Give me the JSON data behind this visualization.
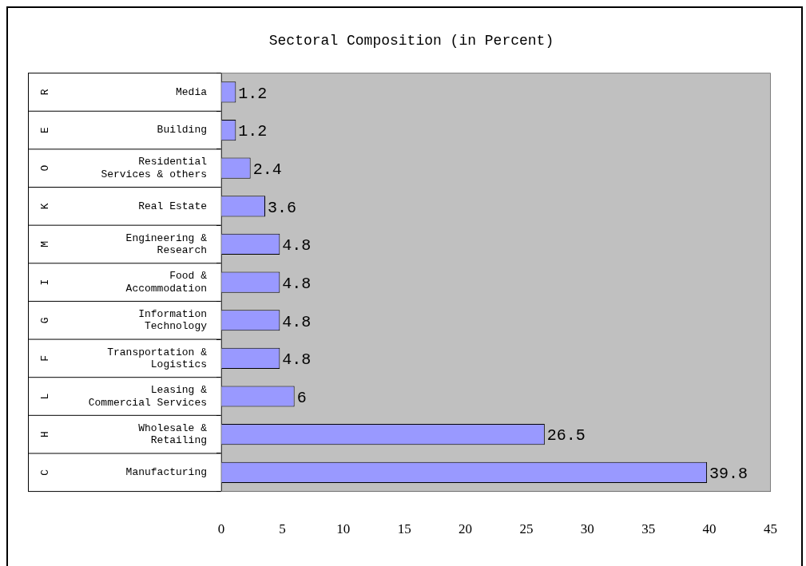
{
  "chart_data": {
    "type": "bar",
    "orientation": "horizontal",
    "title": "Sectoral Composition (in Percent)",
    "categories": [
      "Media",
      "Building",
      "Residential Services & others",
      "Real Estate",
      "Engineering & Research",
      "Food & Accommodation",
      "Information Technology",
      "Transportation & Logistics",
      "Leasing & Commercial Services",
      "Wholesale & Retailing",
      "Manufacturing"
    ],
    "values": [
      1.2,
      1.2,
      2.4,
      3.6,
      4.8,
      4.8,
      4.8,
      4.8,
      6,
      26.5,
      39.8
    ],
    "color": "#9999ff",
    "xlim": [
      0,
      45
    ],
    "xticks": [
      0,
      5,
      10,
      15,
      20,
      25,
      30,
      35,
      40,
      45
    ],
    "data_labels": true,
    "annotations": [
      "R",
      "E",
      "O",
      "K",
      "M",
      "I",
      "G",
      "F",
      "L",
      "H",
      "C"
    ]
  }
}
